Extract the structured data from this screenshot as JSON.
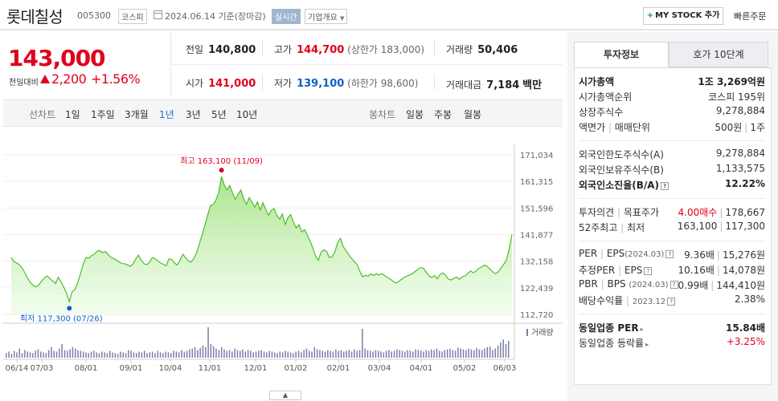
{
  "header": {
    "title": "롯데칠성",
    "code": "005300",
    "market": "코스피",
    "date": "2024.06.14 기준(장마감)",
    "realtime": "실시간",
    "overview": "기업개요",
    "mystock": "MY STOCK 추가",
    "quick_order": "빠른주문"
  },
  "price": {
    "current": "143,000",
    "change_label": "전일대비",
    "change": "2,200",
    "change_pct": "+1.56%"
  },
  "stats": {
    "prev_label": "전일",
    "prev": "140,800",
    "high_label": "고가",
    "high": "144,700",
    "upper_limit": "(상한가 183,000)",
    "volume_label": "거래량",
    "volume": "50,406",
    "open_label": "시가",
    "open": "141,000",
    "low_label": "저가",
    "low": "139,100",
    "lower_limit": "(하한가 98,600)",
    "amount_label": "거래대금",
    "amount": "7,184",
    "amount_unit": "백만"
  },
  "tabs": {
    "line_label": "선차트",
    "line": [
      "1일",
      "1주일",
      "3개월",
      "1년",
      "3년",
      "5년",
      "10년"
    ],
    "active": "1년",
    "candle_label": "봉차트",
    "candle": [
      "일봉",
      "주봉",
      "월봉"
    ]
  },
  "chart_data": {
    "type": "area",
    "y_ticks": [
      "171,034",
      "161,315",
      "151,596",
      "141,877",
      "132,158",
      "122,439",
      "112,720"
    ],
    "ylim": [
      112720,
      171034
    ],
    "x_labels": [
      "06/14",
      "07/03",
      "08/01",
      "09/01",
      "10/04",
      "11/01",
      "12/01",
      "01/02",
      "02/01",
      "03/04",
      "04/01",
      "05/02",
      "06/03"
    ],
    "high_label": "최고 163,100 (11/09)",
    "low_label": "최저 117,300 (07/26)",
    "volume_legend": "거래량",
    "series": [
      {
        "values": [
          133500,
          132000,
          131500,
          130800,
          129500,
          127800,
          125700,
          124300,
          123200,
          122800,
          123500,
          125000,
          126000,
          126800,
          125800,
          124900,
          124000,
          126300,
          124500,
          122600,
          120500,
          117300,
          121000,
          121700,
          124200,
          127500,
          131000,
          133500,
          133200,
          134200,
          134700,
          135800,
          136000,
          135300,
          135700,
          134600,
          133600,
          133100,
          132600,
          131900,
          131300,
          131200,
          130800,
          130300,
          131100,
          132900,
          134400,
          132500,
          131200,
          130900,
          131800,
          133500,
          133100,
          132300,
          131500,
          131000,
          130500,
          133000,
          132800,
          131500,
          130700,
          132500,
          134700,
          133500,
          132300,
          131800,
          133200,
          135200,
          138500,
          141800,
          145200,
          149000,
          152500,
          152800,
          154500,
          157300,
          163100,
          160000,
          158200,
          159800,
          157000,
          154800,
          156600,
          158200,
          155000,
          152900,
          155400,
          153800,
          151900,
          153800,
          150800,
          153500,
          151000,
          149000,
          150700,
          151400,
          149000,
          147500,
          149400,
          145500,
          148000,
          149200,
          146500,
          144300,
          145500,
          142800,
          143700,
          141800,
          139500,
          137000,
          134000,
          132500,
          135500,
          136300,
          135700,
          133500,
          133800,
          135600,
          139000,
          140500,
          137500,
          136000,
          134500,
          133200,
          132000,
          131000,
          128500,
          126400,
          127000,
          126700,
          127500,
          126900,
          127600,
          127100,
          127600,
          126900,
          126200,
          125600,
          124800,
          124200,
          124700,
          125500,
          126200,
          126700,
          127100,
          127600,
          128400,
          129200,
          129800,
          129600,
          128100,
          126800,
          126100,
          126900,
          125700,
          127300,
          127900,
          127000,
          125600,
          125300,
          125900,
          126400,
          125500,
          126400,
          126800,
          127600,
          128600,
          127900,
          128600,
          129500,
          130000,
          130700,
          130300,
          129300,
          128300,
          127600,
          128200,
          129600,
          131000,
          132500,
          136800,
          141900
        ]
      }
    ],
    "volume": [
      6,
      8,
      5,
      9,
      7,
      12,
      6,
      10,
      8,
      7,
      6,
      9,
      11,
      8,
      7,
      6,
      10,
      14,
      9,
      8,
      12,
      18,
      10,
      9,
      11,
      14,
      12,
      10,
      9,
      8,
      7,
      6,
      8,
      9,
      7,
      6,
      8,
      7,
      6,
      9,
      7,
      6,
      5,
      8,
      7,
      6,
      10,
      9,
      7,
      6,
      8,
      7,
      9,
      6,
      7,
      8,
      6,
      9,
      7,
      6,
      8,
      7,
      6,
      9,
      8,
      7,
      10,
      8,
      9,
      11,
      12,
      14,
      10,
      13,
      16,
      14,
      40,
      18,
      15,
      12,
      10,
      14,
      11,
      9,
      10,
      8,
      12,
      10,
      9,
      11,
      8,
      10,
      9,
      7,
      8,
      9,
      10,
      8,
      7,
      9,
      8,
      7,
      6,
      8,
      7,
      9,
      8,
      7,
      6,
      8,
      9,
      7,
      10,
      12,
      9,
      8,
      14,
      11,
      10,
      9,
      8,
      10,
      9,
      8,
      11,
      9,
      10,
      8,
      9,
      10,
      8,
      11,
      9,
      10,
      38,
      12,
      10,
      9,
      8,
      10,
      9,
      8,
      7,
      9,
      10,
      8,
      9,
      11,
      10,
      9,
      8,
      10,
      9,
      8,
      11,
      10,
      9,
      8,
      10,
      9,
      11,
      10,
      12,
      9,
      8,
      10,
      11,
      12,
      10,
      9,
      13,
      12,
      11,
      10,
      12,
      11,
      10,
      13,
      11,
      10,
      12,
      14,
      15,
      10,
      12,
      16,
      20,
      24,
      18,
      22
    ]
  },
  "right": {
    "tab_active": "투자정보",
    "tab_inactive": "호가 10단계",
    "market_cap_label": "시가총액",
    "market_cap": "1조 3,269억원",
    "cap_rank_label": "시가총액순위",
    "cap_rank": "코스피 195위",
    "shares_label": "상장주식수",
    "shares": "9,278,884",
    "par_label": "액면가",
    "unit_label": "매매단위",
    "par": "500원",
    "unit": "1주",
    "foreign_limit_label": "외국인한도주식수(A)",
    "foreign_limit": "9,278,884",
    "foreign_hold_label": "외국인보유주식수(B)",
    "foreign_hold": "1,133,575",
    "foreign_ratio_label": "외국인소진율(B/A)",
    "foreign_ratio": "12.22%",
    "opinion_label": "투자의견",
    "target_label": "목표주가",
    "opinion": "4.00매수",
    "target": "178,667",
    "w52_label": "52주최고",
    "w52_low_label": "최저",
    "w52_high": "163,100",
    "w52_low": "117,300",
    "per_label": "PER",
    "eps_label": "EPS",
    "eps_date": "(2024.03)",
    "per": "9.36배",
    "eps": "15,276원",
    "est_per_label": "추정PER",
    "est_eps_label": "EPS",
    "est_per": "10.16배",
    "est_eps": "14,078원",
    "pbr_label": "PBR",
    "bps_label": "BPS",
    "bps_date": "(2024.03)",
    "pbr": "0.99배",
    "bps": "144,410원",
    "div_label": "배당수익률",
    "div_date": "2023.12",
    "div": "2.38%",
    "sector_per_label": "동일업종 PER",
    "sector_per": "15.84배",
    "sector_chg_label": "동일업종 등락률",
    "sector_chg": "+3.25%"
  }
}
